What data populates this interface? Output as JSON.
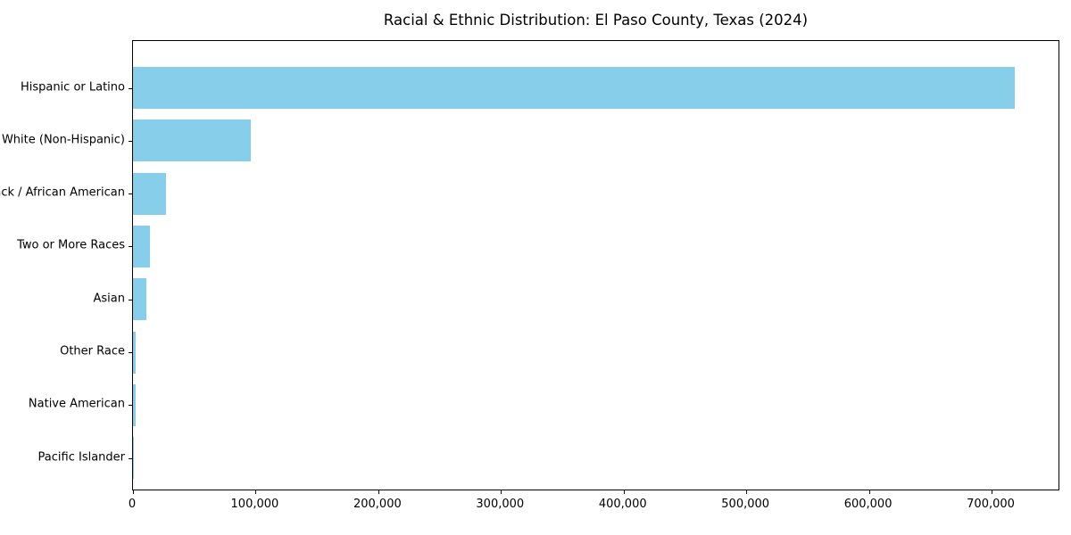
{
  "chart_data": {
    "type": "bar",
    "orientation": "horizontal",
    "title": "Racial & Ethnic Distribution: El Paso County, Texas (2024)",
    "categories": [
      "Hispanic or Latino",
      "White (Non-Hispanic)",
      "Black / African American",
      "Two or More Races",
      "Asian",
      "Other Race",
      "Native American",
      "Pacific Islander"
    ],
    "values": [
      720000,
      96000,
      27000,
      14000,
      11000,
      2200,
      2000,
      700
    ],
    "xlabel": "",
    "ylabel": "",
    "xlim": [
      0,
      756000
    ],
    "x_ticks": [
      0,
      100000,
      200000,
      300000,
      400000,
      500000,
      600000,
      700000
    ],
    "x_tick_labels": [
      "0",
      "100,000",
      "200,000",
      "300,000",
      "400,000",
      "500,000",
      "600,000",
      "700,000"
    ],
    "grid": false,
    "legend": "none",
    "bar_color": "#87CEEB"
  },
  "colors": {
    "bar": "#87CEEB",
    "axis": "#000000",
    "text": "#000000",
    "background": "#ffffff"
  }
}
